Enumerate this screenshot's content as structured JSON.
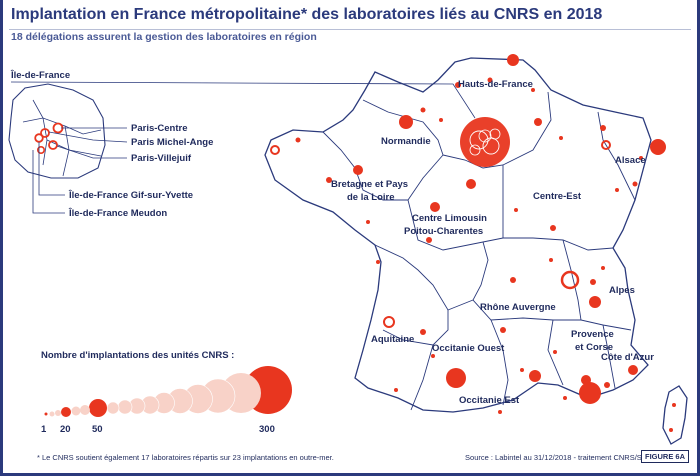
{
  "header": {
    "title": "Implantation en France métropolitaine* des laboratoires liés au CNRS en 2018",
    "subtitle": "18 délégations assurent la gestion des laboratoires en région"
  },
  "inset": {
    "region_label": "Île-de-France",
    "sites": [
      "Paris-Centre",
      "Paris Michel-Ange",
      "Paris-Villejuif",
      "Île-de-France Gif-sur-Yvette",
      "Île-de-France Meudon"
    ]
  },
  "regions": [
    "Hauts-de-France",
    "Normandie",
    "Alsace",
    "Bretagne et Pays de la Loire",
    "Centre-Est",
    "Centre Limousin Poitou-Charentes",
    "Alpes",
    "Rhône Auvergne",
    "Aquitaine",
    "Provence et Corse",
    "Côte d'Azur",
    "Occitanie Ouest",
    "Occitanie Est"
  ],
  "region_label_lines": {
    "bretagne": [
      "Bretagne et Pays",
      "de la Loire"
    ],
    "centre": [
      "Centre Limousin",
      "Poitou-Charentes"
    ],
    "provence": [
      "Provence",
      "et Corse"
    ]
  },
  "legend": {
    "title": "Nombre d'implantations des unités CNRS :",
    "ticks": [
      "1",
      "20",
      "50",
      "300"
    ],
    "tick_values": [
      1,
      20,
      50,
      300
    ]
  },
  "footer": {
    "footnote": "* Le CNRS soutient également 17 laboratoires répartis sur 23 implantations en outre-mer.",
    "source": "Source : Labintel au 31/12/2018 - traitement CNRS/SAP2S",
    "figure": "FIGURE 6A"
  },
  "colors": {
    "frame": "#2b3a7c",
    "title": "#2b3a7c",
    "map_fill": "#ffffff",
    "border": "#2b3a7c",
    "bubble": "#e8361f",
    "bubble_light": "#f8d2c8",
    "label": "#1f2a5c"
  }
}
